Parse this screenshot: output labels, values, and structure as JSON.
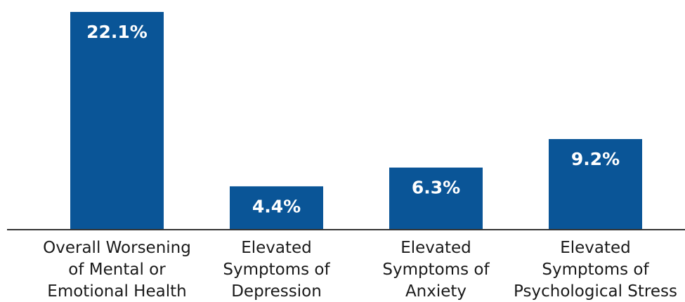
{
  "chart_data": {
    "type": "bar",
    "categories": [
      [
        "Overall Worsening",
        "of Mental or",
        "Emotional Health"
      ],
      [
        "Elevated",
        "Symptoms of",
        "Depression"
      ],
      [
        "Elevated",
        "Symptoms of",
        "Anxiety"
      ],
      [
        "Elevated",
        "Symptoms of",
        "Psychological Stress"
      ]
    ],
    "values": [
      22.1,
      4.4,
      6.3,
      9.2
    ],
    "value_labels": [
      "22.1%",
      "4.4%",
      "6.3%",
      "9.2%"
    ],
    "unit": "%",
    "title": "",
    "xlabel": "",
    "ylabel": "",
    "ylim": [
      0,
      23
    ],
    "grid": false,
    "legend": "none",
    "bar_color": "#0a5597",
    "label_color": "#ffffff",
    "axis_color": "#333333"
  }
}
